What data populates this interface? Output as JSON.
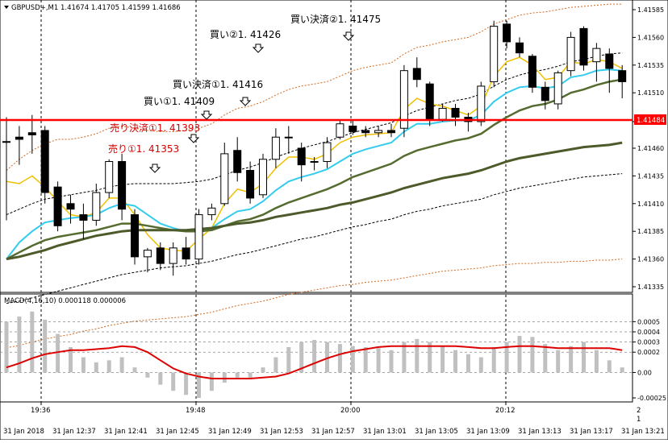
{
  "header": {
    "symbol_info": "GBPUSD+,M1  1.41674 1.41705 1.41599 1.41686"
  },
  "annotations": [
    {
      "text": "買い決済②1. 41475",
      "color": "#000000"
    },
    {
      "text": "買い②1. 41426",
      "color": "#000000"
    },
    {
      "text": "買い決済①1. 41416",
      "color": "#000000"
    },
    {
      "text": "買い①1. 41409",
      "color": "#000000"
    },
    {
      "text": "売り決済①1. 41393",
      "color": "#d00000"
    },
    {
      "text": "売り①1. 41353",
      "color": "#d00000"
    }
  ],
  "price_axis": {
    "ticks": [
      "1.41585",
      "1.41560",
      "1.41535",
      "1.41510",
      "1.41484",
      "1.41460",
      "1.41435",
      "1.41410",
      "1.41385",
      "1.41360",
      "1.41335"
    ],
    "current_price_label": "1.41484",
    "current_price_color": "#ff0000"
  },
  "macd": {
    "label": "MACD(4,16,10) 0.000118 0.000006",
    "ticks": [
      "0.0005",
      "0.0004",
      "0.0003",
      "0.0002",
      "0.00",
      "-0.00025"
    ],
    "signal_color": "#dd0000",
    "histogram_color": "#c0c0c0"
  },
  "time_axis": {
    "top_row": [
      "19:36",
      "19:48",
      "20:00",
      "20:12"
    ],
    "bottom_row": [
      "31 Jan 2018",
      "31 Jan 12:37",
      "31 Jan 12:41",
      "31 Jan 12:45",
      "31 Jan 12:49",
      "31 Jan 12:53",
      "31 Jan 12:57",
      "31 Jan 13:01",
      "31 Jan 13:05",
      "31 Jan 13:09",
      "31 Jan 13:13",
      "31 Jan 13:17",
      "31 Jan 13:21"
    ],
    "right_marks": [
      "2",
      "1"
    ]
  },
  "chart_data": {
    "type": "candlestick",
    "symbol": "GBPUSD+",
    "timeframe": "M1",
    "y_range": [
      1.41335,
      1.4159
    ],
    "horizontal_line": 1.41484,
    "candles": [
      {
        "o": 1.41466,
        "h": 1.41488,
        "l": 1.41395,
        "c": 1.41466
      },
      {
        "o": 1.4147,
        "h": 1.4148,
        "l": 1.41445,
        "c": 1.41468
      },
      {
        "o": 1.41474,
        "h": 1.4149,
        "l": 1.41455,
        "c": 1.41472
      },
      {
        "o": 1.41476,
        "h": 1.4148,
        "l": 1.4141,
        "c": 1.4142
      },
      {
        "o": 1.41425,
        "h": 1.4143,
        "l": 1.41385,
        "c": 1.4139
      },
      {
        "o": 1.4141,
        "h": 1.41418,
        "l": 1.41392,
        "c": 1.41405
      },
      {
        "o": 1.414,
        "h": 1.4141,
        "l": 1.41378,
        "c": 1.41395
      },
      {
        "o": 1.41395,
        "h": 1.41428,
        "l": 1.4139,
        "c": 1.4142
      },
      {
        "o": 1.4142,
        "h": 1.4145,
        "l": 1.41415,
        "c": 1.41448
      },
      {
        "o": 1.41448,
        "h": 1.41455,
        "l": 1.41395,
        "c": 1.41405
      },
      {
        "o": 1.414,
        "h": 1.41405,
        "l": 1.41355,
        "c": 1.41362
      },
      {
        "o": 1.41362,
        "h": 1.4137,
        "l": 1.41348,
        "c": 1.41368
      },
      {
        "o": 1.4137,
        "h": 1.41375,
        "l": 1.4135,
        "c": 1.41356
      },
      {
        "o": 1.41356,
        "h": 1.41375,
        "l": 1.41345,
        "c": 1.4137
      },
      {
        "o": 1.4137,
        "h": 1.4138,
        "l": 1.41355,
        "c": 1.4136
      },
      {
        "o": 1.4136,
        "h": 1.41405,
        "l": 1.41355,
        "c": 1.414
      },
      {
        "o": 1.414,
        "h": 1.4141,
        "l": 1.41395,
        "c": 1.41406
      },
      {
        "o": 1.4141,
        "h": 1.41465,
        "l": 1.41408,
        "c": 1.41455
      },
      {
        "o": 1.41458,
        "h": 1.4147,
        "l": 1.4143,
        "c": 1.41438
      },
      {
        "o": 1.4144,
        "h": 1.41448,
        "l": 1.4141,
        "c": 1.41415
      },
      {
        "o": 1.41418,
        "h": 1.41455,
        "l": 1.41415,
        "c": 1.4145
      },
      {
        "o": 1.4145,
        "h": 1.41478,
        "l": 1.41442,
        "c": 1.4147
      },
      {
        "o": 1.4147,
        "h": 1.4148,
        "l": 1.41455,
        "c": 1.4147
      },
      {
        "o": 1.4146,
        "h": 1.41465,
        "l": 1.4143,
        "c": 1.41445
      },
      {
        "o": 1.41448,
        "h": 1.41452,
        "l": 1.4144,
        "c": 1.41448
      },
      {
        "o": 1.41448,
        "h": 1.4147,
        "l": 1.41442,
        "c": 1.41465
      },
      {
        "o": 1.4147,
        "h": 1.41486,
        "l": 1.41468,
        "c": 1.41482
      },
      {
        "o": 1.4148,
        "h": 1.41486,
        "l": 1.41472,
        "c": 1.41475
      },
      {
        "o": 1.41476,
        "h": 1.4148,
        "l": 1.4147,
        "c": 1.41474
      },
      {
        "o": 1.41474,
        "h": 1.4148,
        "l": 1.4147,
        "c": 1.41476
      },
      {
        "o": 1.41476,
        "h": 1.41482,
        "l": 1.4147,
        "c": 1.41474
      },
      {
        "o": 1.41478,
        "h": 1.41535,
        "l": 1.4147,
        "c": 1.4153
      },
      {
        "o": 1.41532,
        "h": 1.41542,
        "l": 1.41515,
        "c": 1.41522
      },
      {
        "o": 1.41518,
        "h": 1.4152,
        "l": 1.4148,
        "c": 1.41486
      },
      {
        "o": 1.41486,
        "h": 1.415,
        "l": 1.41484,
        "c": 1.41496
      },
      {
        "o": 1.41496,
        "h": 1.415,
        "l": 1.4148,
        "c": 1.41488
      },
      {
        "o": 1.41488,
        "h": 1.41492,
        "l": 1.41475,
        "c": 1.41484
      },
      {
        "o": 1.41484,
        "h": 1.4152,
        "l": 1.4148,
        "c": 1.41516
      },
      {
        "o": 1.4152,
        "h": 1.41575,
        "l": 1.41515,
        "c": 1.4157
      },
      {
        "o": 1.41572,
        "h": 1.41575,
        "l": 1.4155,
        "c": 1.41556
      },
      {
        "o": 1.41555,
        "h": 1.4156,
        "l": 1.41542,
        "c": 1.41546
      },
      {
        "o": 1.41543,
        "h": 1.41545,
        "l": 1.4151,
        "c": 1.41515
      },
      {
        "o": 1.41515,
        "h": 1.4152,
        "l": 1.41495,
        "c": 1.41503
      },
      {
        "o": 1.415,
        "h": 1.4153,
        "l": 1.41495,
        "c": 1.41528
      },
      {
        "o": 1.4153,
        "h": 1.41565,
        "l": 1.41525,
        "c": 1.4156
      },
      {
        "o": 1.41568,
        "h": 1.4157,
        "l": 1.4153,
        "c": 1.41535
      },
      {
        "o": 1.41538,
        "h": 1.41555,
        "l": 1.4152,
        "c": 1.4155
      },
      {
        "o": 1.41545,
        "h": 1.4155,
        "l": 1.4151,
        "c": 1.41532
      },
      {
        "o": 1.4153,
        "h": 1.41535,
        "l": 1.41505,
        "c": 1.4152
      }
    ],
    "moving_averages": [
      {
        "color": "#f0c000",
        "values": [
          1.4143,
          1.41428,
          1.41435,
          1.41425,
          1.41412,
          1.414,
          1.41398,
          1.41402,
          1.41415,
          1.41415,
          1.414,
          1.41382,
          1.4137,
          1.41368,
          1.41367,
          1.41378,
          1.41388,
          1.4141,
          1.41423,
          1.4142,
          1.41428,
          1.41442,
          1.41452,
          1.41452,
          1.4145,
          1.41455,
          1.41465,
          1.4147,
          1.41472,
          1.41473,
          1.41474,
          1.41495,
          1.41505,
          1.415,
          1.41498,
          1.41494,
          1.4149,
          1.41498,
          1.41525,
          1.41538,
          1.41542,
          1.41535,
          1.41522,
          1.41524,
          1.41538,
          1.41536,
          1.4154,
          1.41538,
          1.41532
        ]
      },
      {
        "color": "#33ccee",
        "values": [
          1.4136,
          1.41375,
          1.41385,
          1.41393,
          1.41395,
          1.41397,
          1.41398,
          1.414,
          1.41406,
          1.4141,
          1.41408,
          1.414,
          1.41392,
          1.41388,
          1.41385,
          1.41385,
          1.41388,
          1.41396,
          1.41403,
          1.41405,
          1.41412,
          1.41422,
          1.4143,
          1.41434,
          1.41437,
          1.41441,
          1.41448,
          1.41455,
          1.41459,
          1.41462,
          1.41465,
          1.41475,
          1.41482,
          1.41482,
          1.41484,
          1.41485,
          1.41485,
          1.4149,
          1.41502,
          1.4151,
          1.41515,
          1.41516,
          1.41514,
          1.41516,
          1.41524,
          1.41526,
          1.4153,
          1.41531,
          1.4153
        ]
      },
      {
        "color": "#556b2f",
        "values": [
          1.4136,
          1.41366,
          1.41372,
          1.41377,
          1.4138,
          1.41382,
          1.41384,
          1.41386,
          1.41389,
          1.41392,
          1.41392,
          1.4139,
          1.41388,
          1.41386,
          1.41385,
          1.41385,
          1.41386,
          1.4139,
          1.41394,
          1.41396,
          1.414,
          1.41406,
          1.41411,
          1.41415,
          1.41419,
          1.41423,
          1.41428,
          1.41434,
          1.41438,
          1.41442,
          1.41446,
          1.41453,
          1.41458,
          1.41461,
          1.41464,
          1.41467,
          1.41469,
          1.41473,
          1.41481,
          1.41488,
          1.41494,
          1.41498,
          1.415,
          1.41504,
          1.4151,
          1.41513,
          1.41517,
          1.4152,
          1.41522
        ]
      },
      {
        "color": "#4d5a2a",
        "values": [
          1.4136,
          1.41362,
          1.41365,
          1.41368,
          1.41372,
          1.41375,
          1.41378,
          1.41381,
          1.41383,
          1.41385,
          1.41386,
          1.41386,
          1.41386,
          1.41386,
          1.41386,
          1.41387,
          1.41388,
          1.4139,
          1.41392,
          1.41393,
          1.41395,
          1.41398,
          1.414,
          1.41402,
          1.41404,
          1.41406,
          1.41409,
          1.41411,
          1.41414,
          1.41417,
          1.4142,
          1.41424,
          1.41427,
          1.4143,
          1.41433,
          1.41435,
          1.41437,
          1.4144,
          1.41444,
          1.41448,
          1.41451,
          1.41453,
          1.41455,
          1.41457,
          1.41459,
          1.41461,
          1.41462,
          1.41463,
          1.41465
        ]
      }
    ],
    "envelope_upper": [
      1.4144,
      1.4145,
      1.41458,
      1.41464,
      1.41468,
      1.41468,
      1.4147,
      1.41473,
      1.41478,
      1.4148,
      1.41478,
      1.41476,
      1.41475,
      1.41475,
      1.41476,
      1.41478,
      1.41482,
      1.4149,
      1.41496,
      1.41498,
      1.41502,
      1.41508,
      1.41513,
      1.41516,
      1.41518,
      1.4152,
      1.41525,
      1.4153,
      1.41533,
      1.41535,
      1.41537,
      1.41545,
      1.41551,
      1.41553,
      1.41556,
      1.41558,
      1.4156,
      1.41565,
      1.41572,
      1.41576,
      1.4158,
      1.41582,
      1.41583,
      1.41585,
      1.41587,
      1.41588,
      1.41589,
      1.4159,
      1.4159
    ],
    "envelope_lower": [
      1.4128,
      1.41282,
      1.41285,
      1.41288,
      1.4129,
      1.41292,
      1.41295,
      1.41297,
      1.413,
      1.41302,
      1.41304,
      1.41305,
      1.41306,
      1.41307,
      1.41308,
      1.4131,
      1.41312,
      1.41315,
      1.41318,
      1.4132,
      1.41322,
      1.41325,
      1.41328,
      1.4133,
      1.41332,
      1.41334,
      1.41336,
      1.41337,
      1.41339,
      1.4134,
      1.41341,
      1.41343,
      1.41345,
      1.41347,
      1.41349,
      1.4135,
      1.41351,
      1.41352,
      1.41354,
      1.41355,
      1.41356,
      1.41356,
      1.41357,
      1.41357,
      1.41358,
      1.41358,
      1.41359,
      1.41359,
      1.4136
    ],
    "envelope_inner_upper": [
      1.414,
      1.41405,
      1.4141,
      1.41414,
      1.41416,
      1.41418,
      1.4142,
      1.41422,
      1.41425,
      1.41427,
      1.41428,
      1.41428,
      1.41428,
      1.41428,
      1.41429,
      1.4143,
      1.41432,
      1.41436,
      1.4144,
      1.41443,
      1.41447,
      1.41452,
      1.41456,
      1.4146,
      1.41463,
      1.41466,
      1.4147,
      1.41474,
      1.41477,
      1.4148,
      1.41483,
      1.41489,
      1.41494,
      1.41497,
      1.415,
      1.41503,
      1.41505,
      1.41509,
      1.41516,
      1.41522,
      1.41526,
      1.41529,
      1.41531,
      1.41534,
      1.41538,
      1.4154,
      1.41543,
      1.41545,
      1.41546
    ],
    "envelope_inner_lower": [
      1.4132,
      1.41322,
      1.41325,
      1.41328,
      1.41331,
      1.41334,
      1.41337,
      1.4134,
      1.41343,
      1.41346,
      1.41348,
      1.4135,
      1.41352,
      1.41353,
      1.41354,
      1.41356,
      1.41358,
      1.41361,
      1.41364,
      1.41366,
      1.41369,
      1.41372,
      1.41375,
      1.41378,
      1.4138,
      1.41383,
      1.41386,
      1.41389,
      1.41391,
      1.41394,
      1.41396,
      1.414,
      1.41403,
      1.41405,
      1.41408,
      1.4141,
      1.41412,
      1.41414,
      1.41418,
      1.41421,
      1.41424,
      1.41426,
      1.41428,
      1.4143,
      1.41432,
      1.41434,
      1.41435,
      1.41436,
      1.41437
    ],
    "macd_histogram": [
      0.0005,
      0.00055,
      0.0006,
      0.00052,
      0.00038,
      0.00025,
      0.00015,
      0.0001,
      0.00012,
      0.00015,
      5e-05,
      -5e-05,
      -0.00012,
      -0.00018,
      -0.00022,
      -0.00025,
      -0.00018,
      -0.0001,
      -5e-05,
      -5e-05,
      5e-05,
      0.00015,
      0.00025,
      0.0003,
      0.00032,
      0.0003,
      0.00028,
      0.00026,
      0.00025,
      0.00024,
      0.00022,
      0.0003,
      0.00033,
      0.0003,
      0.00026,
      0.00022,
      0.00018,
      0.00015,
      0.00025,
      0.0003,
      0.00036,
      0.00035,
      0.00028,
      0.00022,
      0.00026,
      0.0003,
      0.00022,
      0.00012,
      5e-05
    ],
    "macd_signal": [
      5e-05,
      9e-05,
      0.00014,
      0.00018,
      0.0002,
      0.00022,
      0.00022,
      0.00023,
      0.00024,
      0.00026,
      0.00025,
      0.0002,
      0.00012,
      4e-05,
      -1e-05,
      -4e-05,
      -6e-05,
      -6e-05,
      -6e-05,
      -6e-05,
      -5e-05,
      -4e-05,
      -1e-05,
      4e-05,
      9e-05,
      0.00014,
      0.00018,
      0.00021,
      0.00023,
      0.00025,
      0.00026,
      0.00026,
      0.00026,
      0.00026,
      0.00026,
      0.00026,
      0.00025,
      0.00024,
      0.00024,
      0.00025,
      0.00026,
      0.00026,
      0.00025,
      0.00024,
      0.00024,
      0.00024,
      0.00024,
      0.00024,
      0.00022
    ]
  }
}
